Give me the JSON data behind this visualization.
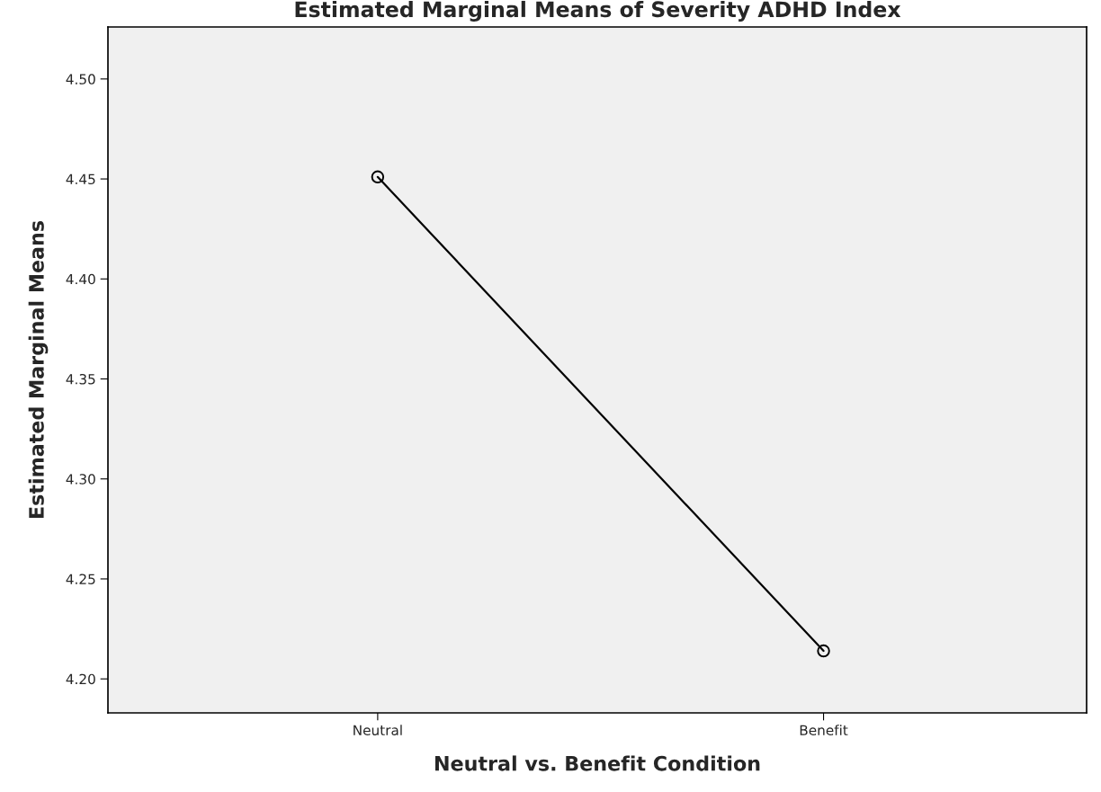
{
  "chart_data": {
    "type": "line",
    "title": "Estimated Marginal Means of Severity ADHD Index",
    "xlabel": "Neutral vs. Benefit Condition",
    "ylabel": "Estimated Marginal Means",
    "categories": [
      "Neutral",
      "Benefit"
    ],
    "series": [
      {
        "color": "#000000",
        "values": [
          4.451,
          4.214
        ]
      }
    ],
    "ylim": [
      4.183,
      4.526
    ],
    "yticks": [
      {
        "value": 4.2,
        "label": "4.20"
      },
      {
        "value": 4.25,
        "label": "4.25"
      },
      {
        "value": 4.3,
        "label": "4.30"
      },
      {
        "value": 4.35,
        "label": "4.35"
      },
      {
        "value": 4.4,
        "label": "4.40"
      },
      {
        "value": 4.45,
        "label": "4.45"
      },
      {
        "value": 4.5,
        "label": "4.50"
      }
    ],
    "grid": false,
    "legend": false,
    "marker": "circle",
    "line_style": "solid"
  }
}
